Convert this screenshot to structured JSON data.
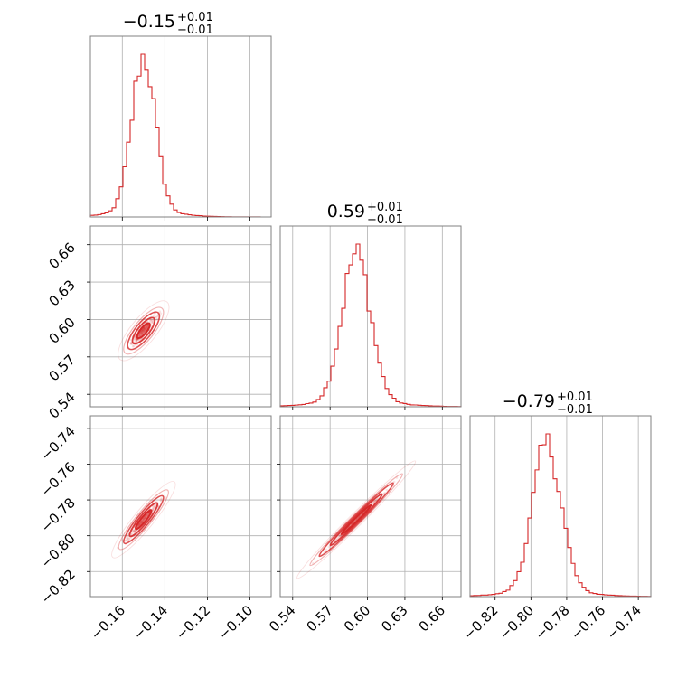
{
  "chart_data": {
    "type": "corner",
    "color": "#d62728",
    "grid": true,
    "parameters": [
      {
        "title_value": "−0.15",
        "title_plus": "+0.01",
        "title_minus": "−0.01",
        "median": -0.15,
        "sigma": 0.0055,
        "lim": [
          -0.175,
          -0.09
        ],
        "ticks": [
          -0.16,
          -0.14,
          -0.12,
          -0.1
        ],
        "tick_labels": [
          "−0.16",
          "−0.14",
          "−0.12",
          "−0.10"
        ]
      },
      {
        "title_value": "0.59",
        "title_plus": "+0.01",
        "title_minus": "−0.01",
        "median": 0.591,
        "sigma": 0.0115,
        "lim": [
          0.53,
          0.675
        ],
        "ticks": [
          0.54,
          0.57,
          0.6,
          0.63,
          0.66
        ],
        "tick_labels": [
          "0.54",
          "0.57",
          "0.60",
          "0.63",
          "0.66"
        ]
      },
      {
        "title_value": "−0.79",
        "title_plus": "+0.01",
        "title_minus": "−0.01",
        "median": -0.791,
        "sigma": 0.008,
        "lim": [
          -0.834,
          -0.733
        ],
        "ticks": [
          -0.82,
          -0.8,
          -0.78,
          -0.76,
          -0.74
        ],
        "tick_labels": [
          "−0.82",
          "−0.80",
          "−0.78",
          "−0.76",
          "−0.74"
        ]
      }
    ],
    "contours": [
      {
        "x_param": 0,
        "y_param": 1,
        "slope": 2.1,
        "along_halfwidth": 0.016,
        "across_halfwidth": 0.004
      },
      {
        "x_param": 0,
        "y_param": 2,
        "slope": 1.45,
        "along_halfwidth": 0.016,
        "across_halfwidth": 0.003
      },
      {
        "x_param": 1,
        "y_param": 2,
        "slope": 0.69,
        "along_halfwidth": 0.036,
        "across_halfwidth": 0.0025
      }
    ]
  }
}
